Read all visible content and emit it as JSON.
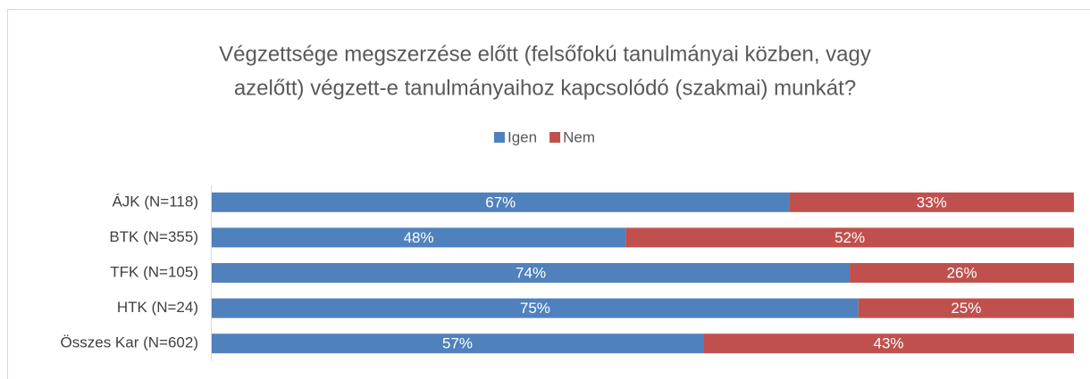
{
  "chart_data": {
    "type": "bar",
    "orientation": "horizontal",
    "stacked": true,
    "title": [
      "Végzettsége megszerzése előtt (felsőfokú tanulmányai közben, vagy",
      "azelőtt) végzett-e tanulmányaihoz kapcsolódó (szakmai) munkát?"
    ],
    "categories": [
      "ÁJK (N=118)",
      "BTK (N=355)",
      "TFK (N=105)",
      "HTK (N=24)",
      "Összes Kar (N=602)"
    ],
    "xlim": [
      0,
      100
    ],
    "legend": "top",
    "series": [
      {
        "name": "Igen",
        "color": "#4f81bd",
        "values": [
          67,
          48,
          74,
          75,
          57
        ],
        "value_labels": [
          "67%",
          "48%",
          "74%",
          "75%",
          "57%"
        ]
      },
      {
        "name": "Nem",
        "color": "#c0504d",
        "values": [
          33,
          52,
          26,
          25,
          43
        ],
        "value_labels": [
          "33%",
          "52%",
          "26%",
          "25%",
          "43%"
        ]
      }
    ]
  }
}
